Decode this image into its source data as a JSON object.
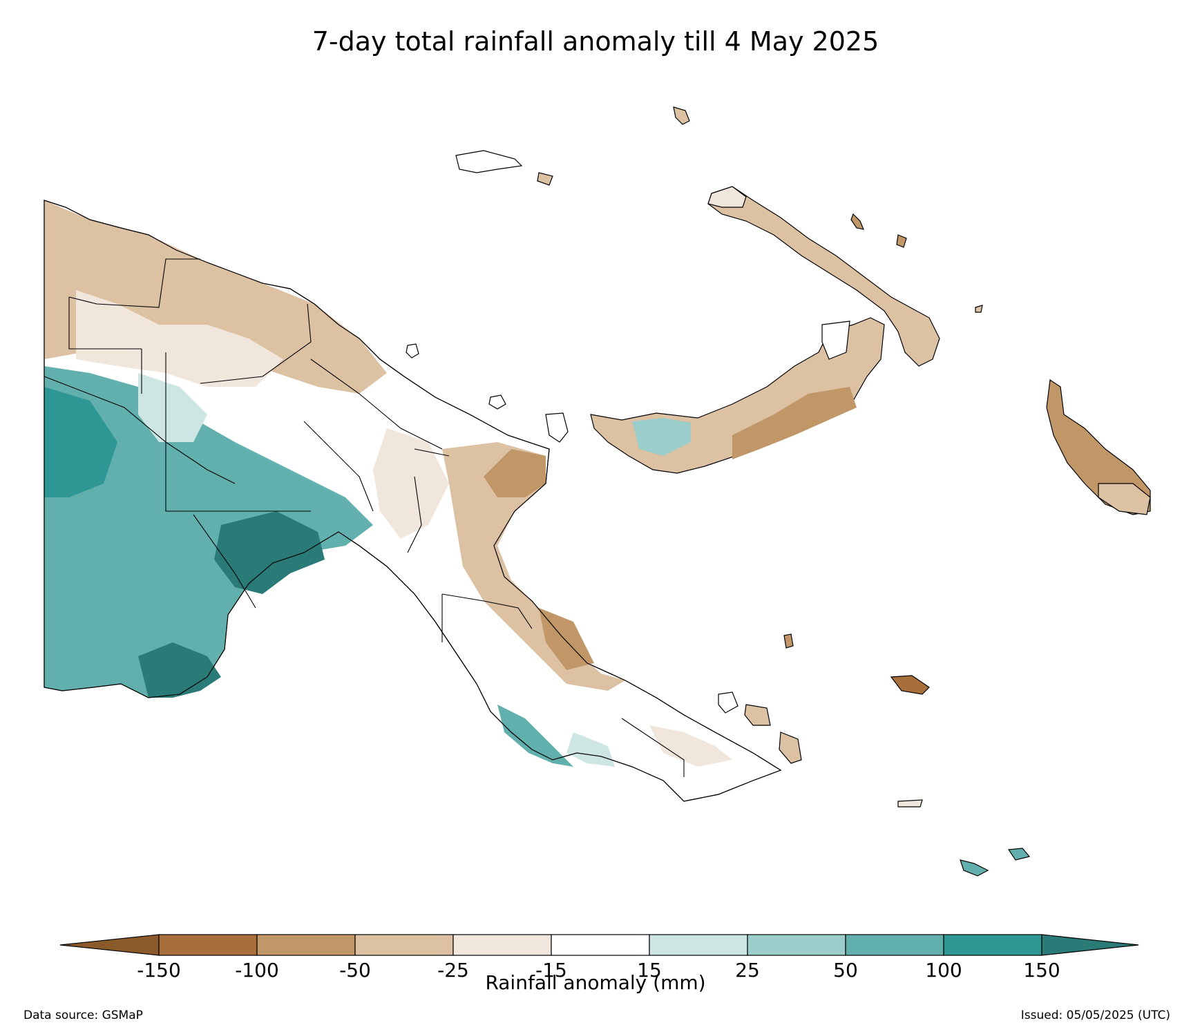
{
  "title": "7-day total rainfall anomaly till 4 May 2025",
  "colorbar": {
    "label": "Rainfall anomaly (mm)",
    "ticks": [
      "-150",
      "-100",
      "-50",
      "-25",
      "-15",
      "15",
      "25",
      "50",
      "100",
      "150"
    ],
    "extend_low_color": "#8b5a2b",
    "extend_high_color": "#2a7b78",
    "bins": [
      {
        "range": "-150 to -100",
        "color": "#a86f3a"
      },
      {
        "range": "-100 to -50",
        "color": "#c29768"
      },
      {
        "range": "-50 to -25",
        "color": "#dcc1a3"
      },
      {
        "range": "-25 to -15",
        "color": "#f1e6dc"
      },
      {
        "range": "-15 to 15",
        "color": "#ffffff"
      },
      {
        "range": "15 to 25",
        "color": "#cde6e4"
      },
      {
        "range": "25 to 50",
        "color": "#9bcdca"
      },
      {
        "range": "50 to 100",
        "color": "#62b0ad"
      },
      {
        "range": "100 to 150",
        "color": "#2f9793"
      }
    ]
  },
  "footer": {
    "source": "Data source: GSMaP",
    "issued": "Issued: 05/05/2025 (UTC)"
  }
}
